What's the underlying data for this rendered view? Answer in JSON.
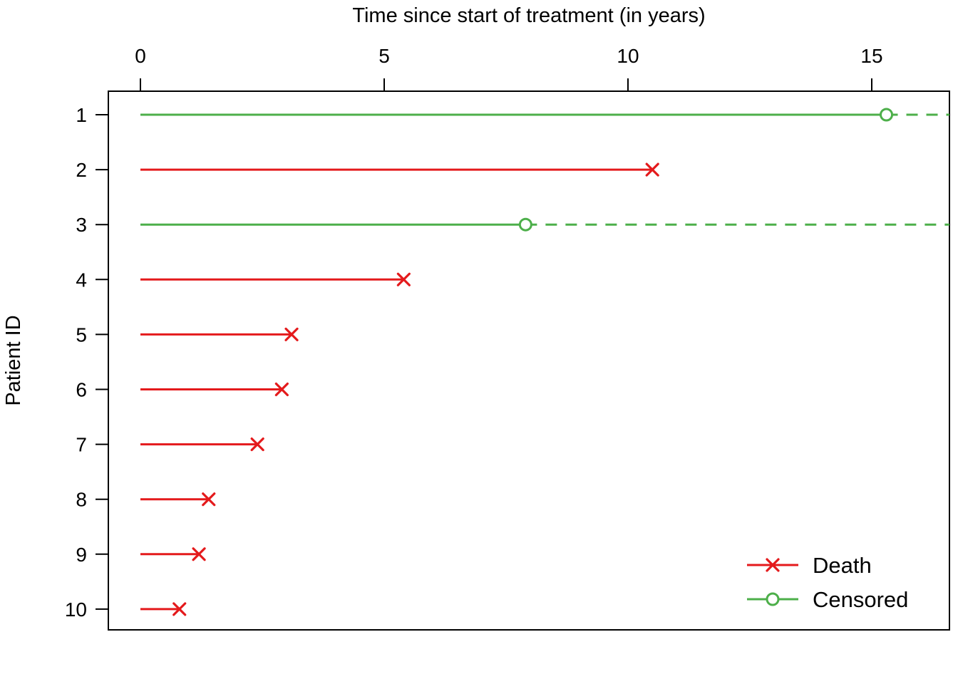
{
  "chart_data": {
    "type": "line",
    "subtype": "patient-event-timeline",
    "title": "Time since start of treatment (in years)",
    "ylabel": "Patient ID",
    "xlabel": "",
    "x_ticks": [
      0,
      5,
      10,
      15
    ],
    "xlim": [
      0,
      16.6
    ],
    "grid": false,
    "legend_position": "bottom-right-inside",
    "colors": {
      "death": "#e41a1c",
      "censored": "#4daf4a",
      "axis": "#000000"
    },
    "censored_dashed_to_edge": true,
    "patients": [
      {
        "id": "1",
        "time": 15.3,
        "status": "censored"
      },
      {
        "id": "2",
        "time": 10.5,
        "status": "death"
      },
      {
        "id": "3",
        "time": 7.9,
        "status": "censored"
      },
      {
        "id": "4",
        "time": 5.4,
        "status": "death"
      },
      {
        "id": "5",
        "time": 3.1,
        "status": "death"
      },
      {
        "id": "6",
        "time": 2.9,
        "status": "death"
      },
      {
        "id": "7",
        "time": 2.4,
        "status": "death"
      },
      {
        "id": "8",
        "time": 1.4,
        "status": "death"
      },
      {
        "id": "9",
        "time": 1.2,
        "status": "death"
      },
      {
        "id": "10",
        "time": 0.8,
        "status": "death"
      }
    ],
    "legend": [
      {
        "label": "Death",
        "status": "death"
      },
      {
        "label": "Censored",
        "status": "censored"
      }
    ]
  }
}
